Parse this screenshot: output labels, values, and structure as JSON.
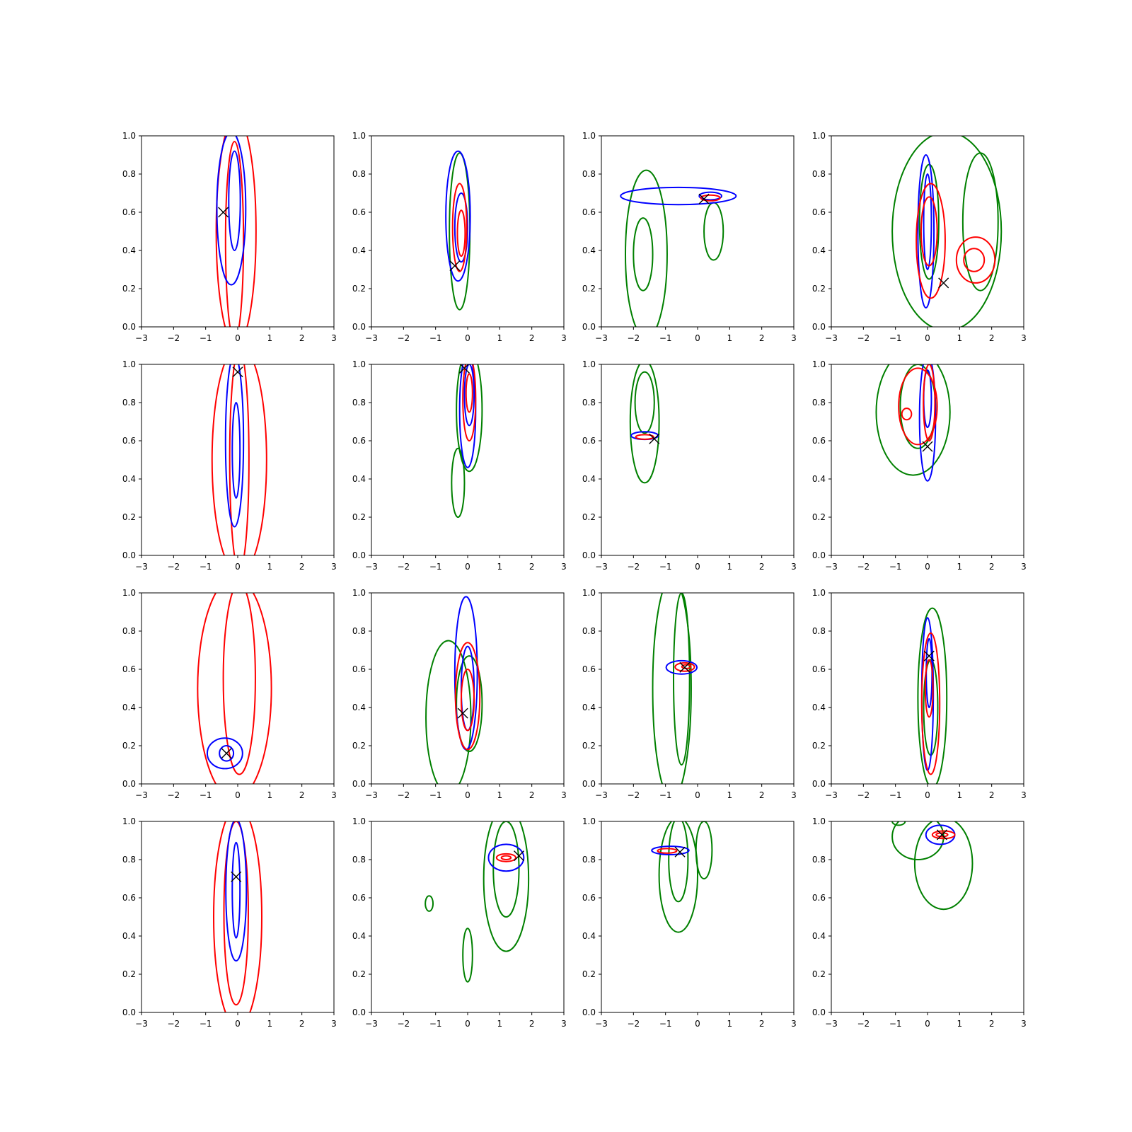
{
  "chart_data": {
    "type": "contour",
    "layout": {
      "rows": 4,
      "cols": 4
    },
    "xlim": [
      -3,
      3
    ],
    "ylim": [
      0,
      1
    ],
    "x_ticks": [
      -3,
      -2,
      -1,
      0,
      1,
      2,
      3
    ],
    "y_ticks": [
      0.0,
      0.2,
      0.4,
      0.6,
      0.8,
      1.0
    ],
    "x_tick_labels": [
      "−3",
      "−2",
      "−1",
      "0",
      "1",
      "2",
      "3"
    ],
    "y_tick_labels": [
      "0.0",
      "0.2",
      "0.4",
      "0.6",
      "0.8",
      "1.0"
    ],
    "colors": {
      "blue": "#0000ff",
      "red": "#ff0000",
      "green": "#008000",
      "marker": "#000000"
    },
    "marker": "x",
    "panels": [
      {
        "marker": [
          -0.45,
          0.6
        ],
        "contours": [
          {
            "color": "red",
            "cx": -0.05,
            "cy": 0.5,
            "rx": 0.62,
            "ry": 0.6
          },
          {
            "color": "red",
            "cx": -0.1,
            "cy": 0.45,
            "rx": 0.28,
            "ry": 0.52
          },
          {
            "color": "blue",
            "cx": -0.2,
            "cy": 0.62,
            "rx": 0.45,
            "ry": 0.4
          },
          {
            "color": "blue",
            "cx": -0.1,
            "cy": 0.66,
            "rx": 0.18,
            "ry": 0.26
          }
        ]
      },
      {
        "marker": [
          -0.4,
          0.32
        ],
        "contours": [
          {
            "color": "green",
            "cx": -0.25,
            "cy": 0.5,
            "rx": 0.32,
            "ry": 0.41
          },
          {
            "color": "blue",
            "cx": -0.3,
            "cy": 0.58,
            "rx": 0.38,
            "ry": 0.34
          },
          {
            "color": "blue",
            "cx": -0.2,
            "cy": 0.52,
            "rx": 0.2,
            "ry": 0.18
          },
          {
            "color": "red",
            "cx": -0.25,
            "cy": 0.52,
            "rx": 0.22,
            "ry": 0.23
          },
          {
            "color": "red",
            "cx": -0.2,
            "cy": 0.49,
            "rx": 0.12,
            "ry": 0.12
          }
        ]
      },
      {
        "marker": [
          0.2,
          0.67
        ],
        "contours": [
          {
            "color": "green",
            "cx": -1.6,
            "cy": 0.38,
            "rx": 0.65,
            "ry": 0.44
          },
          {
            "color": "green",
            "cx": -1.7,
            "cy": 0.38,
            "rx": 0.3,
            "ry": 0.19
          },
          {
            "color": "green",
            "cx": 0.5,
            "cy": 0.5,
            "rx": 0.3,
            "ry": 0.15
          },
          {
            "color": "blue",
            "cx": -0.6,
            "cy": 0.685,
            "rx": 1.8,
            "ry": 0.045
          },
          {
            "color": "blue",
            "cx": 0.4,
            "cy": 0.685,
            "rx": 0.35,
            "ry": 0.02
          },
          {
            "color": "red",
            "cx": 0.4,
            "cy": 0.675,
            "rx": 0.3,
            "ry": 0.015
          }
        ]
      },
      {
        "marker": [
          0.5,
          0.23
        ],
        "contours": [
          {
            "color": "green",
            "cx": 0.6,
            "cy": 0.5,
            "rx": 1.7,
            "ry": 0.52
          },
          {
            "color": "green",
            "cx": 1.65,
            "cy": 0.55,
            "rx": 0.55,
            "ry": 0.36
          },
          {
            "color": "green",
            "cx": 0.05,
            "cy": 0.55,
            "rx": 0.3,
            "ry": 0.3
          },
          {
            "color": "blue",
            "cx": -0.05,
            "cy": 0.5,
            "rx": 0.25,
            "ry": 0.4
          },
          {
            "color": "blue",
            "cx": 0.0,
            "cy": 0.55,
            "rx": 0.12,
            "ry": 0.25
          },
          {
            "color": "red",
            "cx": 0.1,
            "cy": 0.45,
            "rx": 0.45,
            "ry": 0.3
          },
          {
            "color": "red",
            "cx": 0.05,
            "cy": 0.5,
            "rx": 0.25,
            "ry": 0.18
          },
          {
            "color": "red",
            "cx": 1.5,
            "cy": 0.35,
            "rx": 0.6,
            "ry": 0.12
          },
          {
            "color": "red",
            "cx": 1.45,
            "cy": 0.35,
            "rx": 0.32,
            "ry": 0.06
          }
        ]
      },
      {
        "marker": [
          0.0,
          0.96
        ],
        "contours": [
          {
            "color": "red",
            "cx": 0.05,
            "cy": 0.5,
            "rx": 0.85,
            "ry": 0.6
          },
          {
            "color": "red",
            "cx": 0.05,
            "cy": 0.5,
            "rx": 0.3,
            "ry": 0.58
          },
          {
            "color": "blue",
            "cx": -0.1,
            "cy": 0.6,
            "rx": 0.28,
            "ry": 0.45
          },
          {
            "color": "blue",
            "cx": -0.05,
            "cy": 0.55,
            "rx": 0.12,
            "ry": 0.25
          }
        ]
      },
      {
        "marker": [
          -0.1,
          0.98
        ],
        "contours": [
          {
            "color": "green",
            "cx": -0.3,
            "cy": 0.38,
            "rx": 0.2,
            "ry": 0.18
          },
          {
            "color": "green",
            "cx": 0.05,
            "cy": 0.76,
            "rx": 0.4,
            "ry": 0.32
          },
          {
            "color": "blue",
            "cx": 0.0,
            "cy": 0.76,
            "rx": 0.25,
            "ry": 0.3
          },
          {
            "color": "blue",
            "cx": 0.05,
            "cy": 0.84,
            "rx": 0.15,
            "ry": 0.16
          },
          {
            "color": "red",
            "cx": 0.05,
            "cy": 0.82,
            "rx": 0.2,
            "ry": 0.22
          },
          {
            "color": "red",
            "cx": 0.05,
            "cy": 0.85,
            "rx": 0.1,
            "ry": 0.1
          }
        ]
      },
      {
        "marker": [
          -1.35,
          0.61
        ],
        "contours": [
          {
            "color": "green",
            "cx": -1.65,
            "cy": 0.7,
            "rx": 0.45,
            "ry": 0.32
          },
          {
            "color": "green",
            "cx": -1.65,
            "cy": 0.8,
            "rx": 0.3,
            "ry": 0.16
          },
          {
            "color": "blue",
            "cx": -1.65,
            "cy": 0.627,
            "rx": 0.42,
            "ry": 0.02
          },
          {
            "color": "red",
            "cx": -1.65,
            "cy": 0.62,
            "rx": 0.28,
            "ry": 0.012
          }
        ]
      },
      {
        "marker": [
          0.0,
          0.57
        ],
        "contours": [
          {
            "color": "green",
            "cx": -0.45,
            "cy": 0.75,
            "rx": 1.15,
            "ry": 0.33
          },
          {
            "color": "green",
            "cx": -0.3,
            "cy": 0.78,
            "rx": 0.55,
            "ry": 0.22
          },
          {
            "color": "blue",
            "cx": 0.0,
            "cy": 0.72,
            "rx": 0.25,
            "ry": 0.33
          },
          {
            "color": "blue",
            "cx": 0.0,
            "cy": 0.82,
            "rx": 0.12,
            "ry": 0.15
          },
          {
            "color": "red",
            "cx": -0.3,
            "cy": 0.78,
            "rx": 0.6,
            "ry": 0.2
          },
          {
            "color": "red",
            "cx": -0.65,
            "cy": 0.74,
            "rx": 0.15,
            "ry": 0.03
          },
          {
            "color": "red",
            "cx": 0.05,
            "cy": 0.8,
            "rx": 0.18,
            "ry": 0.2
          }
        ]
      },
      {
        "marker": [
          -0.35,
          0.16
        ],
        "contours": [
          {
            "color": "red",
            "cx": -0.1,
            "cy": 0.5,
            "rx": 1.15,
            "ry": 0.58
          },
          {
            "color": "red",
            "cx": 0.05,
            "cy": 0.55,
            "rx": 0.5,
            "ry": 0.5
          },
          {
            "color": "blue",
            "cx": -0.4,
            "cy": 0.16,
            "rx": 0.55,
            "ry": 0.08
          },
          {
            "color": "blue",
            "cx": -0.35,
            "cy": 0.16,
            "rx": 0.22,
            "ry": 0.04
          }
        ]
      },
      {
        "marker": [
          -0.15,
          0.37
        ],
        "contours": [
          {
            "color": "green",
            "cx": -0.6,
            "cy": 0.35,
            "rx": 0.7,
            "ry": 0.4
          },
          {
            "color": "green",
            "cx": 0.05,
            "cy": 0.42,
            "rx": 0.4,
            "ry": 0.25
          },
          {
            "color": "blue",
            "cx": -0.05,
            "cy": 0.58,
            "rx": 0.35,
            "ry": 0.4
          },
          {
            "color": "blue",
            "cx": 0.0,
            "cy": 0.5,
            "rx": 0.2,
            "ry": 0.22
          },
          {
            "color": "red",
            "cx": 0.0,
            "cy": 0.46,
            "rx": 0.38,
            "ry": 0.28
          },
          {
            "color": "red",
            "cx": 0.0,
            "cy": 0.44,
            "rx": 0.2,
            "ry": 0.16
          }
        ]
      },
      {
        "marker": [
          -0.4,
          0.61
        ],
        "contours": [
          {
            "color": "green",
            "cx": -0.8,
            "cy": 0.5,
            "rx": 0.6,
            "ry": 0.58
          },
          {
            "color": "green",
            "cx": -0.5,
            "cy": 0.55,
            "rx": 0.25,
            "ry": 0.45
          },
          {
            "color": "blue",
            "cx": -0.5,
            "cy": 0.61,
            "rx": 0.48,
            "ry": 0.035
          },
          {
            "color": "red",
            "cx": -0.4,
            "cy": 0.612,
            "rx": 0.3,
            "ry": 0.022
          },
          {
            "color": "red",
            "cx": -0.35,
            "cy": 0.614,
            "rx": 0.14,
            "ry": 0.01
          }
        ]
      },
      {
        "marker": [
          0.05,
          0.67
        ],
        "contours": [
          {
            "color": "green",
            "cx": 0.15,
            "cy": 0.45,
            "rx": 0.45,
            "ry": 0.47
          },
          {
            "color": "green",
            "cx": 0.1,
            "cy": 0.4,
            "rx": 0.22,
            "ry": 0.25
          },
          {
            "color": "blue",
            "cx": 0.0,
            "cy": 0.47,
            "rx": 0.18,
            "ry": 0.4
          },
          {
            "color": "blue",
            "cx": 0.05,
            "cy": 0.58,
            "rx": 0.09,
            "ry": 0.18
          },
          {
            "color": "red",
            "cx": 0.1,
            "cy": 0.42,
            "rx": 0.28,
            "ry": 0.37
          },
          {
            "color": "red",
            "cx": 0.05,
            "cy": 0.5,
            "rx": 0.12,
            "ry": 0.15
          }
        ]
      },
      {
        "marker": [
          -0.05,
          0.71
        ],
        "contours": [
          {
            "color": "red",
            "cx": 0.0,
            "cy": 0.5,
            "rx": 0.75,
            "ry": 0.58
          },
          {
            "color": "red",
            "cx": -0.05,
            "cy": 0.52,
            "rx": 0.38,
            "ry": 0.48
          },
          {
            "color": "blue",
            "cx": -0.05,
            "cy": 0.64,
            "rx": 0.32,
            "ry": 0.37
          },
          {
            "color": "blue",
            "cx": -0.05,
            "cy": 0.64,
            "rx": 0.12,
            "ry": 0.25
          }
        ]
      },
      {
        "marker": [
          1.6,
          0.82
        ],
        "contours": [
          {
            "color": "green",
            "cx": -1.2,
            "cy": 0.57,
            "rx": 0.12,
            "ry": 0.04
          },
          {
            "color": "green",
            "cx": 0.0,
            "cy": 0.3,
            "rx": 0.15,
            "ry": 0.14
          },
          {
            "color": "green",
            "cx": 1.2,
            "cy": 0.7,
            "rx": 0.7,
            "ry": 0.38
          },
          {
            "color": "green",
            "cx": 1.2,
            "cy": 0.75,
            "rx": 0.4,
            "ry": 0.25
          },
          {
            "color": "blue",
            "cx": 1.2,
            "cy": 0.81,
            "rx": 0.55,
            "ry": 0.07
          },
          {
            "color": "red",
            "cx": 1.2,
            "cy": 0.81,
            "rx": 0.3,
            "ry": 0.02
          },
          {
            "color": "red",
            "cx": 1.2,
            "cy": 0.81,
            "rx": 0.15,
            "ry": 0.01
          }
        ]
      },
      {
        "marker": [
          -0.55,
          0.84
        ],
        "contours": [
          {
            "color": "green",
            "cx": -0.6,
            "cy": 0.72,
            "rx": 0.6,
            "ry": 0.3
          },
          {
            "color": "green",
            "cx": -0.6,
            "cy": 0.8,
            "rx": 0.3,
            "ry": 0.22
          },
          {
            "color": "green",
            "cx": 0.2,
            "cy": 0.85,
            "rx": 0.25,
            "ry": 0.15
          },
          {
            "color": "blue",
            "cx": -0.85,
            "cy": 0.848,
            "rx": 0.58,
            "ry": 0.022
          },
          {
            "color": "red",
            "cx": -0.95,
            "cy": 0.846,
            "rx": 0.3,
            "ry": 0.012
          }
        ]
      },
      {
        "marker": [
          0.45,
          0.93
        ],
        "contours": [
          {
            "color": "green",
            "cx": 0.5,
            "cy": 0.78,
            "rx": 0.9,
            "ry": 0.24
          },
          {
            "color": "green",
            "cx": -0.3,
            "cy": 0.92,
            "rx": 0.8,
            "ry": 0.12
          },
          {
            "color": "green",
            "cx": -0.9,
            "cy": 1.0,
            "rx": 0.2,
            "ry": 0.02
          },
          {
            "color": "blue",
            "cx": 0.4,
            "cy": 0.93,
            "rx": 0.45,
            "ry": 0.05
          },
          {
            "color": "red",
            "cx": 0.5,
            "cy": 0.93,
            "rx": 0.35,
            "ry": 0.02
          },
          {
            "color": "red",
            "cx": 0.45,
            "cy": 0.93,
            "rx": 0.18,
            "ry": 0.01
          }
        ]
      }
    ]
  }
}
